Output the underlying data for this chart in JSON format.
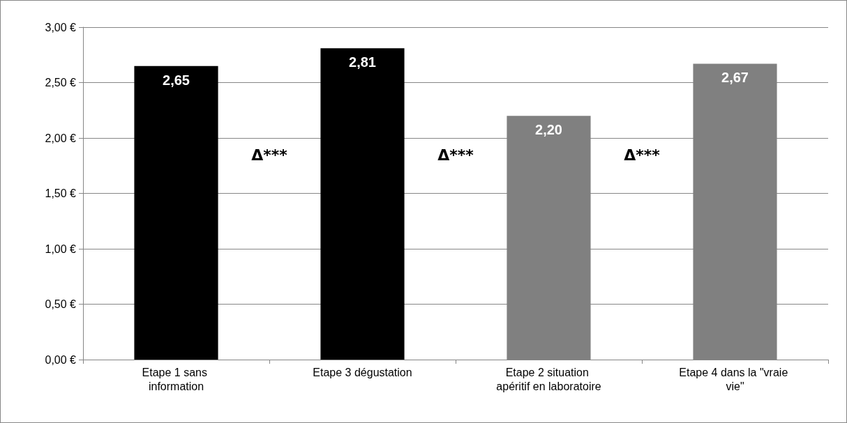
{
  "chart_data": {
    "type": "bar",
    "categories": [
      "Etape 1 sans information",
      "Etape 3 dégustation",
      "Etape 2 situation apéritif en laboratoire",
      "Etape 4 dans la \"vraie vie\""
    ],
    "values": [
      2.65,
      2.81,
      2.2,
      2.67
    ],
    "colors": [
      "#000000",
      "#000000",
      "#808080",
      "#808080"
    ],
    "value_labels": [
      "2,65",
      "2,81",
      "2,20",
      "2,67"
    ],
    "ylim": [
      0,
      3
    ],
    "yticks": [
      {
        "value": 0,
        "label": "0,00 €"
      },
      {
        "value": 0.5,
        "label": "0,50 €"
      },
      {
        "value": 1,
        "label": "1,00 €"
      },
      {
        "value": 1.5,
        "label": "1,50 €"
      },
      {
        "value": 2,
        "label": "2,00 €"
      },
      {
        "value": 2.5,
        "label": "2,50 €"
      },
      {
        "value": 3,
        "label": "3,00 €"
      }
    ],
    "grid": "y",
    "annotations": [
      "Δ***",
      "Δ***",
      "Δ***"
    ]
  }
}
